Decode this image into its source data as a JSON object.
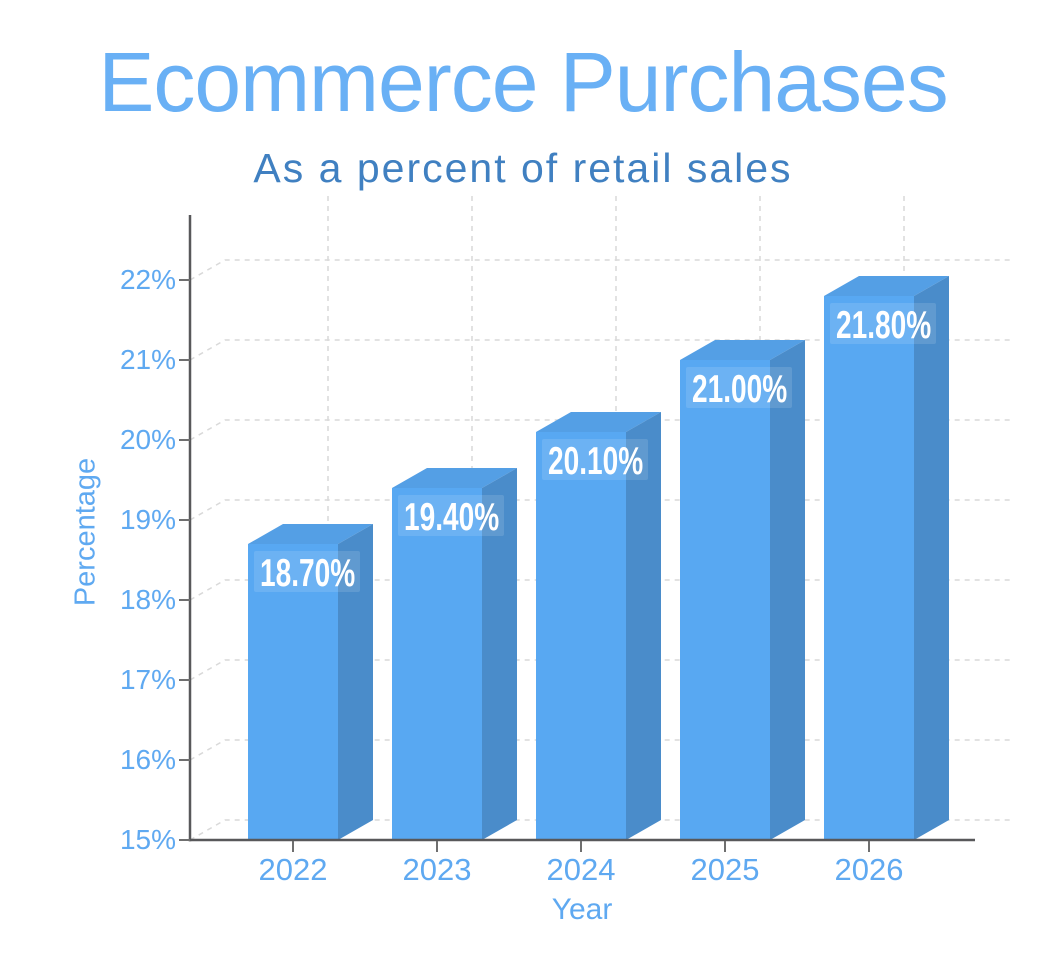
{
  "title": {
    "text": "Ecommerce Purchases"
  },
  "subtitle": {
    "text": "As a percent of retail sales"
  },
  "chart_data": {
    "type": "bar",
    "projection": "3d",
    "title": "Ecommerce Purchases",
    "subtitle": "As a percent of retail sales",
    "xlabel": "Year",
    "ylabel": "Percentage",
    "categories": [
      "2022",
      "2023",
      "2024",
      "2025",
      "2026"
    ],
    "values": [
      18.7,
      19.4,
      20.1,
      21.0,
      21.8
    ],
    "value_labels": [
      "18.70%",
      "19.40%",
      "20.10%",
      "21.00%",
      "21.80%"
    ],
    "ylim": [
      15,
      22
    ],
    "ytick_step": 1,
    "ytick_labels": [
      "15%",
      "16%",
      "17%",
      "18%",
      "19%",
      "20%",
      "21%",
      "22%"
    ],
    "grid": "dashed",
    "legend": "none"
  },
  "colors": {
    "title": "#69b0f5",
    "subtitle": "#4080c1",
    "axis_label": "#5fa9f1",
    "bar_front": "#58a8f2",
    "bar_top": "#549fe5",
    "bar_side": "#4a8cca",
    "value_label": "#ffffff",
    "value_label_bg": "rgba(255,255,255,0.12)",
    "axis_line": "#58585a",
    "tick_mark": "#6f6f6f",
    "grid_line": "#d9d9d9",
    "background": "#ffffff"
  }
}
